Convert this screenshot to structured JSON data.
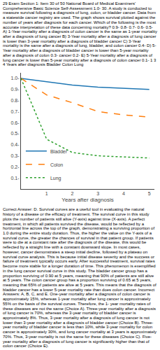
{
  "chart_data": {
    "type": "line",
    "x": [
      0,
      1,
      2,
      3,
      4,
      5
    ],
    "series": [
      {
        "name": "Bladder",
        "line_style": "solid",
        "values": [
          1.0,
          0.97,
          0.94,
          0.92,
          0.91,
          0.9
        ]
      },
      {
        "name": "Colon",
        "line_style": "dash",
        "values": [
          1.0,
          0.85,
          0.78,
          0.7,
          0.67,
          0.65
        ]
      },
      {
        "name": "Lung",
        "line_style": "dot",
        "values": [
          1.0,
          0.45,
          0.33,
          0.3,
          0.29,
          0.28
        ]
      }
    ],
    "x_label": "Years after diagnosis",
    "xlim": [
      0,
      5.2
    ],
    "xticks": [
      1,
      2,
      3,
      4,
      5
    ],
    "ylim": [
      0.0,
      1.05
    ],
    "yticks": [
      {
        "value": 0.1,
        "label": "0.1-"
      },
      {
        "value": 0.2,
        "label": "0.2-"
      },
      {
        "value": 0.3,
        "label": "0.3-"
      },
      {
        "value": 0.4,
        "label": "0.4-"
      },
      {
        "value": 0.5,
        "label": "0.5-"
      },
      {
        "value": 0.6,
        "label": "0.6-"
      },
      {
        "value": 0.7,
        "label": "0.7-"
      },
      {
        "value": 0.8,
        "label": "0.8-"
      },
      {
        "value": 0.9,
        "label": "0.9-"
      },
      {
        "value": 1.0,
        "label": "1.0-"
      }
    ],
    "grid": false,
    "legend": "lower left",
    "annotations": [
      "29 Exam Section 1: Item 30 of 50 National Board of Medical Examiners' Comprehensive Basic Science Self-Assessment 1.0- 30. A study is conducted to measure survival following a diagnosis of lung, colon, or bladder cancer. Data from a statewide cancer registry are used. The graph shows survival plotted against the number of years after diagnosis for each cancer. Which of the following is the most accurate interpretation of these data concerning mortality? 0.9- 0.8- 0.7- 0.6- 0.5- A) 1-Year mortality after a diagnosis of colon cancer is the same as 1-year mortality after a diagnosis of lung cancer B) 3-Year mortality after a diagnosis of lung cancer is lower than 3-year mortality after a diagnosis of bladder cancer C) 3-Year mortality is the same after a diagnosis of lung, bladder, and colon cancer 0.4- D) 5-Year mortality after a diagnosis of bladder cancer is lower than 5-year mortality after a diagnosis of colon 0.3- cancer 0.2- E) 5-Year mortality after a diagnosis of lung cancer is lower than 5-year mortality after a diagnosis of colon cancer 0.1- 1 3 4 Years after diagnosis Bladder Colon Lung",
      "Correct Answer: D. Survival curves are a useful tool in evaluating the natural history of a disease or the efficacy of treatment. The survival curve in this study plots the number of patients still alive (Y-axis) against time (X-axis). A perfect treatment, in which all patients survived the disease, would be reflected by a horizontal line across the top of the graph, demonstrating a surviving proportion of 1.0 during the entire study duration. Thus, the higher the value on the Y-axis of a survival curve, the greater the chances of survival in that patient group. If patients were to die at a constant rate after the diagnosis of the disease, this would be reflected by a straight line with a constant downward slope. In most cases, however, cancer demonstrates a steep initial decline, followed by a plateau on survival curve analysis. This is because initial disease severity and the success or failure of treatment typically occurs early. After successful treatment, survival rates become more stable for a longer duration of time. This phenomenon is exemplified in the lung cancer survival curve in this study. The bladder cancer group has a proportion surviving of 0.90 at 5 years, meaning that 90% of patients are still alive at 5 years. The colon cancer group has a proportion surviving of 0.65 at 5 years, meaning that 65% of patients are alive at 5 years. This means that the diagnosis of bladder cancer has a lower 5-year mortality rate than does colon cancer. Incorrect Answers: A, B, C, and E. One-year mortality after a diagnosis of colon cancer is approximately 15%, whereas 1-year mortality after lung cancer is approximately 55% on the basis of the survival curves. Therefore, the 1- year mortality rates of these diseases are not the same (Choice A). Three-year mortality after a diagnosis of lung cancer is 70%, whereas the 3-year mortality of bladder cancer is approximately 8%. Thus, 3-year mortality after a diagnosis of lung cancer is not lower than 3-year mortality after a diagnosis of bladder cancer (Choice B). Three-year mortality of bladder cancer is less than 10%, while 3-year mortality for colon cancer is approximately 30%, and lung cancer mortality at 3 years is approximately 70%. Thus, 3-year mortality is not the same for these diseases (Choice C). Five-year mortality after a diagnosis of lung cancer is significantly higher than that of colon cancer (Choice E)."
    ]
  }
}
